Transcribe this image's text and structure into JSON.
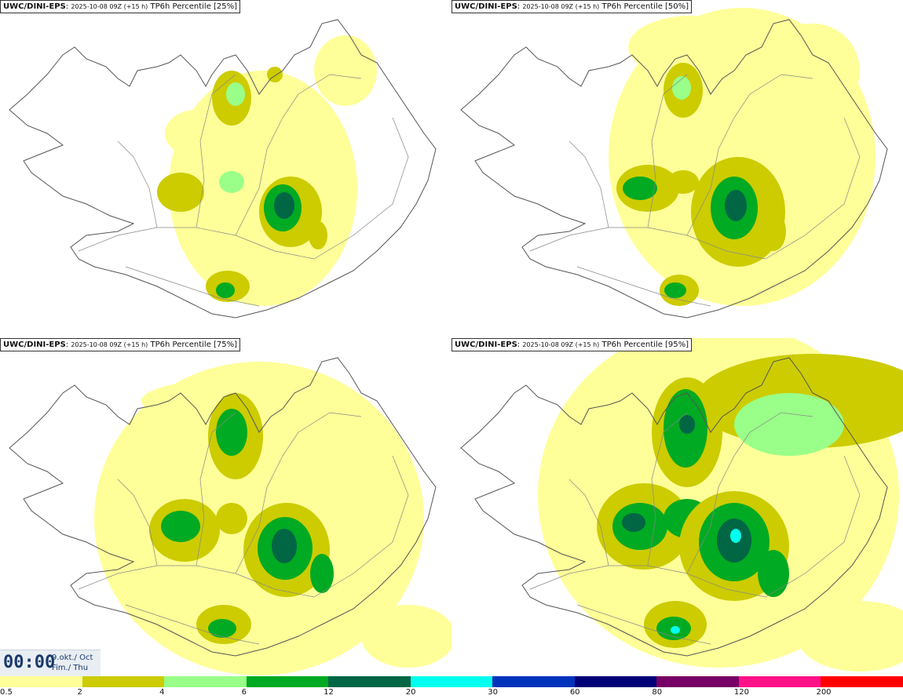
{
  "panels": [
    {
      "model": "UWC/DINI-EPS",
      "run_info": "2025-10-08 09Z (+15 h)",
      "product": "TP6h Percentile [25%]"
    },
    {
      "model": "UWC/DINI-EPS",
      "run_info": "2025-10-08 09Z (+15 h)",
      "product": "TP6h Percentile [50%]"
    },
    {
      "model": "UWC/DINI-EPS",
      "run_info": "2025-10-08 09Z (+15 h)",
      "product": "TP6h Percentile [75%]"
    },
    {
      "model": "UWC/DINI-EPS",
      "run_info": "2025-10-08 09Z (+15 h)",
      "product": "TP6h Percentile [95%]"
    }
  ],
  "valid_time": {
    "time": "00:00",
    "date_line1": "9.okt./ Oct",
    "date_line2": "Fim./ Thu"
  },
  "legend": {
    "labels": [
      "0.5",
      "2",
      "4",
      "6",
      "12",
      "20",
      "30",
      "60",
      "80",
      "120",
      "200"
    ],
    "colors": [
      "#ffff99",
      "#cccc00",
      "#99ff88",
      "#00aa22",
      "#006644",
      "#00ffee",
      "#0033bb",
      "#000077",
      "#770066",
      "#ff1188",
      "#ff0000"
    ]
  },
  "colors": {
    "map_outline": "#555555",
    "roads": "#888888"
  }
}
